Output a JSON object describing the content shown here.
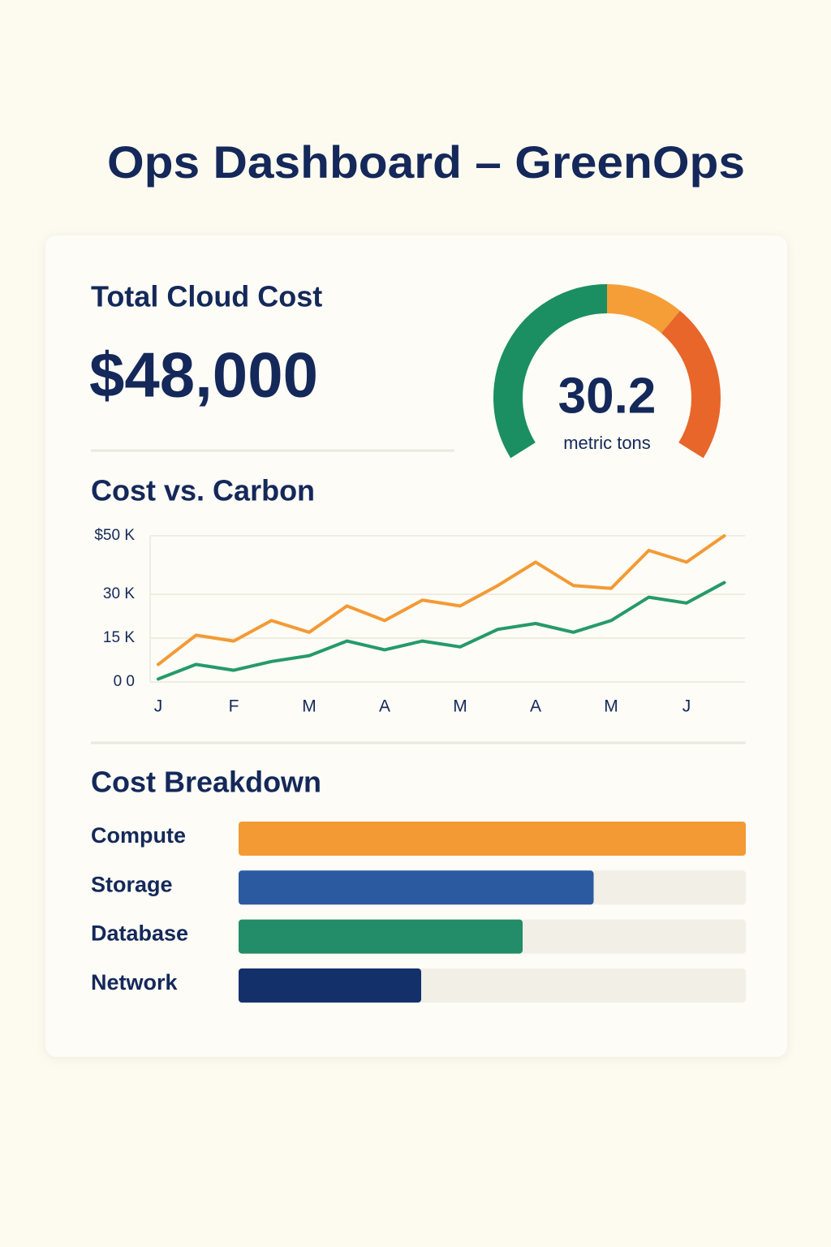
{
  "header": {
    "title": "Ops Dashboard – GreenOps"
  },
  "total_cost": {
    "label": "Total Cloud Cost",
    "value": "$48,000"
  },
  "gauge": {
    "value": "30.2",
    "unit": "metric tons"
  },
  "chart_data": [
    {
      "type": "line",
      "title": "Cost vs. Carbon",
      "categories": [
        "J",
        null,
        "F",
        null,
        "M",
        null,
        "A",
        null,
        "M",
        null,
        "A",
        null,
        "M",
        null,
        "J",
        null
      ],
      "series": [
        {
          "color": "#f39a35",
          "values": [
            6,
            16,
            14,
            21,
            17,
            26,
            21,
            28,
            26,
            33,
            41,
            33,
            32,
            45,
            41,
            50
          ]
        },
        {
          "color": "#259a68",
          "values": [
            1,
            6,
            4,
            7,
            9,
            14,
            11,
            14,
            12,
            18,
            20,
            17,
            21,
            29,
            27,
            34
          ]
        }
      ],
      "ylim": [
        0,
        50
      ],
      "yticks": [
        {
          "value": 50,
          "label": "$50 K"
        },
        {
          "value": 30,
          "label": "30 K"
        },
        {
          "value": 15,
          "label": "15 K"
        },
        {
          "value": 0,
          "label": "0 0"
        }
      ],
      "grid": true
    },
    {
      "type": "hbar",
      "title": "Cost Breakdown",
      "categories": [
        "Compute",
        "Storage",
        "Database",
        "Network"
      ],
      "values": [
        100,
        70,
        56,
        36
      ],
      "colors": [
        "#f39a35",
        "#2c5aa0",
        "#238c68",
        "#14306a"
      ],
      "xlim": [
        0,
        100
      ]
    }
  ]
}
